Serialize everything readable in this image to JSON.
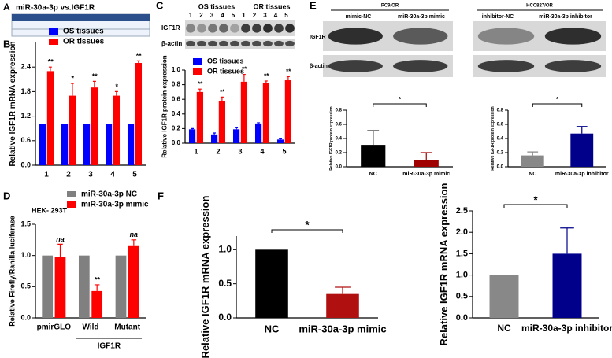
{
  "panel_a": {
    "panel": "A",
    "title": "miR-30a-3p vs.IGF1R"
  },
  "blots": [
    {
      "groups": [
        "OS tissues",
        "OR tissues"
      ],
      "lanes": [
        "1",
        "2",
        "3",
        "4",
        "5",
        "1",
        "2",
        "3",
        "4",
        "5"
      ],
      "rows": [
        "IGF1R",
        "β-actin"
      ]
    },
    {
      "groups": [
        "PC9/OR",
        "HCC827/OR"
      ],
      "lanes": [
        "mimic-NC",
        "miR-30a-3p mimic",
        "inhibitor-NC",
        "miR-30a-3p inhibitor"
      ],
      "rows": [
        "IGF1R",
        "β-actin"
      ]
    }
  ],
  "chart_data": [
    {
      "type": "bar",
      "panel": "B",
      "ylabel": "Relative IGF1R mRNA expression",
      "categories": [
        "1",
        "2",
        "3",
        "4",
        "5"
      ],
      "series": [
        {
          "name": "OS tissues",
          "color": "#0000ff",
          "values": [
            1,
            1,
            1,
            1,
            1
          ]
        },
        {
          "name": "OR tissues",
          "color": "#ff0000",
          "values": [
            2.3,
            1.7,
            1.9,
            1.7,
            2.5
          ],
          "errors": [
            0.1,
            0.3,
            0.15,
            0.1,
            0.05
          ],
          "annotations": [
            "**",
            "*",
            "**",
            "*",
            "**"
          ]
        }
      ],
      "ylim": [
        0,
        3
      ],
      "yticks": [
        {
          "value": 0,
          "label": "0.0"
        },
        0.6,
        1.2,
        1.8,
        2.4
      ]
    },
    {
      "type": "bar",
      "panel": "C",
      "ylabel": "Relative IGF1R protein expression",
      "categories": [
        "1",
        "2",
        "3",
        "4",
        "5"
      ],
      "series": [
        {
          "name": "OS tissues",
          "color": "#0000ff",
          "values": [
            0.19,
            0.12,
            0.19,
            0.27,
            0.05
          ],
          "errors": [
            0.01,
            0.02,
            0.02,
            0.01,
            0.01
          ]
        },
        {
          "name": "OR tissues",
          "color": "#ff0000",
          "values": [
            0.7,
            0.58,
            0.84,
            0.82,
            0.86
          ],
          "errors": [
            0.04,
            0.05,
            0.1,
            0.03,
            0.05
          ],
          "annotations": [
            "**",
            "**",
            "**",
            "**",
            "**"
          ]
        }
      ],
      "ylim": [
        0,
        1
      ],
      "yticks": [
        {
          "value": 0,
          "label": "0.0"
        },
        0.2,
        0.4,
        0.6,
        0.8,
        {
          "value": 1,
          "label": "1.0"
        }
      ]
    },
    {
      "type": "bar",
      "panel": "E",
      "ylabel": "Relative IGF1R protein expression",
      "categories": [
        "NC",
        "miR-30a-3p mimic"
      ],
      "values": [
        0.31,
        0.1
      ],
      "errors": [
        0.2,
        0.1
      ],
      "colors": [
        "#000000",
        "#a00000"
      ],
      "bracket": "*",
      "ylim": [
        0,
        0.8
      ],
      "yticks": [
        {
          "value": 0,
          "label": "0.0"
        },
        0.2,
        0.4,
        0.6,
        0.8
      ]
    },
    {
      "type": "bar",
      "ylabel": "Relative IGF1R protein expression",
      "categories": [
        "NC",
        "miR-30a-3p inhibitor"
      ],
      "values": [
        0.16,
        0.47
      ],
      "errors": [
        0.05,
        0.1
      ],
      "colors": [
        "#888888",
        "#00008b"
      ],
      "bracket": "*",
      "ylim": [
        0,
        0.8
      ],
      "yticks": [
        {
          "value": 0,
          "label": "0.0"
        },
        0.2,
        0.4,
        0.6,
        0.8
      ]
    },
    {
      "type": "bar",
      "panel": "D",
      "title": "HEK- 293T",
      "ylabel": "Relative Firefly/Ranilla luciferase",
      "categories": [
        "pmirGLO",
        "Wild",
        "Mutant"
      ],
      "group_label": "IGF1R",
      "series": [
        {
          "name": "miR-30a-3p NC",
          "color": "#808080",
          "values": [
            1,
            1,
            1
          ]
        },
        {
          "name": "miR-30a-3p mimic",
          "color": "#ff0000",
          "values": [
            0.98,
            0.43,
            1.15
          ],
          "errors": [
            0.2,
            0.1,
            0.1
          ],
          "annotations": [
            "na",
            "**",
            "na"
          ]
        }
      ],
      "ylim": [
        0,
        1.5
      ],
      "yticks": [
        {
          "value": 0,
          "label": "0.0"
        },
        0.5,
        {
          "value": 1,
          "label": "1.0"
        },
        1.5
      ]
    },
    {
      "type": "bar",
      "panel": "F",
      "ylabel": "Relative IGF1R mRNA expression",
      "categories": [
        "NC",
        "miR-30a-3p mimic"
      ],
      "values": [
        1,
        0.35
      ],
      "errors": [
        null,
        0.1
      ],
      "colors": [
        "#000000",
        "#b01010"
      ],
      "bracket": "*",
      "ylim": [
        0,
        1.2
      ],
      "yticks": [
        {
          "value": 0,
          "label": "0.0"
        },
        0.5,
        {
          "value": 1,
          "label": "1.0"
        }
      ]
    },
    {
      "type": "bar",
      "ylabel": "Relative IGF1R mRNA expression",
      "categories": [
        "NC",
        "miR-30a-3p inhibitor"
      ],
      "values": [
        1,
        1.5
      ],
      "errors": [
        null,
        0.6
      ],
      "colors": [
        "#888888",
        "#00008b"
      ],
      "bracket": "*",
      "ylim": [
        0,
        2.5
      ],
      "yticks": [
        {
          "value": 0,
          "label": "0.0"
        },
        0.5,
        {
          "value": 1,
          "label": "1.0"
        },
        1.5,
        {
          "value": 2,
          "label": "2.0"
        },
        2.5
      ]
    }
  ]
}
